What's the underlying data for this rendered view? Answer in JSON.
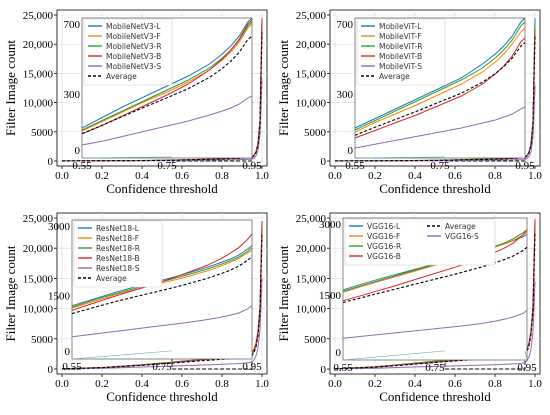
{
  "chart_data": [
    {
      "type": "line",
      "panel": "top-left",
      "xlabel": "Confidence threshold",
      "ylabel": "Filter Image count",
      "xlim": [
        0.0,
        1.0
      ],
      "ylim": [
        0,
        25000
      ],
      "xticks": [
        0.0,
        0.2,
        0.4,
        0.6,
        0.8,
        1.0
      ],
      "xtick_labels": [
        "0.0",
        "0.2",
        "0.4",
        "0.6",
        "0.8",
        "1.0"
      ],
      "yticks": [
        0,
        5000,
        10000,
        15000,
        20000,
        25000
      ],
      "ytick_labels": [
        "0",
        "5000",
        "10,000",
        "15,000",
        "20,000",
        "25,000"
      ],
      "grid": true,
      "x": [
        0.0,
        0.2,
        0.4,
        0.55,
        0.6,
        0.65,
        0.7,
        0.75,
        0.8,
        0.85,
        0.88,
        0.9,
        0.92,
        0.94,
        0.95,
        0.96,
        0.97,
        0.98,
        0.99,
        1.0
      ],
      "series": [
        {
          "name": "MobileNetV3-L",
          "color": "#1f77b4",
          "values": [
            20,
            40,
            90,
            150,
            205,
            260,
            310,
            360,
            410,
            470,
            520,
            560,
            610,
            680,
            700,
            1000,
            1600,
            3000,
            7000,
            24500
          ]
        },
        {
          "name": "MobileNetV3-F",
          "color": "#ff7f0e",
          "values": [
            15,
            35,
            80,
            135,
            185,
            235,
            285,
            330,
            380,
            440,
            490,
            530,
            580,
            650,
            670,
            950,
            1500,
            2800,
            6500,
            23000
          ]
        },
        {
          "name": "MobileNetV3-R",
          "color": "#2ca02c",
          "values": [
            15,
            35,
            80,
            140,
            190,
            240,
            290,
            340,
            390,
            450,
            500,
            540,
            590,
            660,
            680,
            960,
            1550,
            2900,
            6800,
            24000
          ]
        },
        {
          "name": "MobileNetV3-B",
          "color": "#d62728",
          "values": [
            12,
            30,
            70,
            120,
            165,
            215,
            265,
            315,
            370,
            440,
            495,
            540,
            595,
            670,
            690,
            980,
            1600,
            3000,
            7000,
            24300
          ]
        },
        {
          "name": "MobileNetV3-S",
          "color": "#9467bd",
          "values": [
            8,
            18,
            40,
            65,
            85,
            110,
            135,
            160,
            185,
            215,
            235,
            250,
            270,
            300,
            310,
            500,
            900,
            1800,
            4500,
            14000
          ]
        },
        {
          "name": "Average",
          "color": "#000000",
          "dashed": true,
          "values": [
            13,
            32,
            72,
            122,
            166,
            212,
            257,
            301,
            347,
            403,
            448,
            484,
            529,
            592,
            610,
            880,
            1430,
            2700,
            6360,
            22000
          ]
        }
      ],
      "inset": {
        "xlim": [
          0.55,
          0.95
        ],
        "ylim": [
          0,
          700
        ],
        "xtick_labels": [
          "0.55",
          "0.75",
          "0.95"
        ],
        "ytick_labels": [
          "0",
          "300",
          "700"
        ]
      }
    },
    {
      "type": "line",
      "panel": "top-right",
      "xlabel": "Confidence threshold",
      "ylabel": "Filter Image count",
      "xlim": [
        0.0,
        1.0
      ],
      "ylim": [
        0,
        25000
      ],
      "xticks": [
        0.0,
        0.2,
        0.4,
        0.6,
        0.8,
        1.0
      ],
      "xtick_labels": [
        "0.0",
        "0.2",
        "0.4",
        "0.6",
        "0.8",
        "1.0"
      ],
      "yticks": [
        0,
        5000,
        10000,
        15000,
        20000,
        25000
      ],
      "ytick_labels": [
        "0",
        "5000",
        "10,000",
        "15,000",
        "20,000",
        "25,000"
      ],
      "grid": true,
      "x": [
        0.0,
        0.2,
        0.4,
        0.55,
        0.6,
        0.65,
        0.7,
        0.75,
        0.8,
        0.85,
        0.88,
        0.9,
        0.92,
        0.94,
        0.95,
        0.96,
        0.97,
        0.98,
        0.99,
        1.0
      ],
      "series": [
        {
          "name": "MobileViT-L",
          "color": "#1f77b4",
          "values": [
            20,
            40,
            90,
            150,
            200,
            250,
            300,
            350,
            400,
            470,
            520,
            560,
            610,
            680,
            700,
            1000,
            1600,
            3000,
            7000,
            24500
          ]
        },
        {
          "name": "MobileViT-F",
          "color": "#ff7f0e",
          "values": [
            15,
            35,
            80,
            130,
            180,
            225,
            270,
            320,
            370,
            430,
            480,
            520,
            570,
            630,
            650,
            930,
            1500,
            2800,
            6500,
            23000
          ]
        },
        {
          "name": "MobileViT-R",
          "color": "#2ca02c",
          "values": [
            15,
            35,
            85,
            140,
            190,
            240,
            290,
            340,
            390,
            450,
            500,
            540,
            590,
            660,
            680,
            960,
            1550,
            2900,
            6800,
            24000
          ]
        },
        {
          "name": "MobileViT-B",
          "color": "#d62728",
          "values": [
            10,
            25,
            60,
            100,
            140,
            180,
            220,
            265,
            310,
            370,
            420,
            460,
            510,
            580,
            600,
            880,
            1450,
            2700,
            6300,
            22500
          ]
        },
        {
          "name": "MobileViT-S",
          "color": "#9467bd",
          "values": [
            6,
            14,
            30,
            50,
            70,
            90,
            110,
            130,
            150,
            175,
            190,
            205,
            220,
            245,
            255,
            420,
            800,
            1600,
            4000,
            13000
          ]
        },
        {
          "name": "Average",
          "color": "#000000",
          "dashed": true,
          "values": [
            13,
            30,
            69,
            114,
            156,
            197,
            238,
            281,
            324,
            379,
            422,
            457,
            500,
            559,
            577,
            838,
            1380,
            2600,
            6120,
            21400
          ]
        }
      ],
      "inset": {
        "xlim": [
          0.55,
          0.95
        ],
        "ylim": [
          0,
          700
        ],
        "xtick_labels": [
          "0.55",
          "0.75",
          "0.95"
        ],
        "ytick_labels": [
          "0",
          "300",
          "700"
        ]
      }
    },
    {
      "type": "line",
      "panel": "bottom-left",
      "xlabel": "Confidence threshold",
      "ylabel": "Filter Image count",
      "xlim": [
        0.0,
        1.0
      ],
      "ylim": [
        0,
        25000
      ],
      "xticks": [
        0.0,
        0.2,
        0.4,
        0.6,
        0.8,
        1.0
      ],
      "xtick_labels": [
        "0.0",
        "0.2",
        "0.4",
        "0.6",
        "0.8",
        "1.0"
      ],
      "yticks": [
        0,
        5000,
        10000,
        15000,
        20000,
        25000
      ],
      "ytick_labels": [
        "0",
        "5000",
        "10,000",
        "15,000",
        "20,000",
        "25,000"
      ],
      "grid": true,
      "x": [
        0.0,
        0.2,
        0.4,
        0.55,
        0.6,
        0.65,
        0.7,
        0.75,
        0.8,
        0.85,
        0.88,
        0.9,
        0.92,
        0.94,
        0.95,
        0.96,
        0.97,
        0.98,
        0.99,
        1.0
      ],
      "series": [
        {
          "name": "ResNet18-L",
          "color": "#1f77b4",
          "values": [
            30,
            250,
            700,
            1150,
            1300,
            1450,
            1580,
            1700,
            1830,
            1980,
            2080,
            2150,
            2240,
            2370,
            2450,
            3000,
            4000,
            6000,
            10000,
            24000
          ]
        },
        {
          "name": "ResNet18-F",
          "color": "#ff7f0e",
          "values": [
            28,
            240,
            680,
            1100,
            1250,
            1400,
            1520,
            1640,
            1760,
            1900,
            2000,
            2080,
            2170,
            2290,
            2350,
            2900,
            3900,
            5800,
            9800,
            23500
          ]
        },
        {
          "name": "ResNet18-R",
          "color": "#2ca02c",
          "values": [
            29,
            245,
            690,
            1120,
            1280,
            1420,
            1550,
            1670,
            1800,
            1940,
            2040,
            2110,
            2200,
            2320,
            2400,
            2950,
            3950,
            5900,
            9900,
            23800
          ]
        },
        {
          "name": "ResNet18-B",
          "color": "#d62728",
          "values": [
            25,
            230,
            650,
            1050,
            1210,
            1370,
            1520,
            1670,
            1840,
            2020,
            2160,
            2270,
            2400,
            2580,
            2700,
            3300,
            4300,
            6300,
            10500,
            24500
          ]
        },
        {
          "name": "ResNet18-S",
          "color": "#9467bd",
          "values": [
            15,
            130,
            330,
            480,
            540,
            600,
            660,
            720,
            780,
            850,
            900,
            940,
            990,
            1080,
            1150,
            1500,
            2200,
            3500,
            6500,
            15000
          ]
        },
        {
          "name": "Average",
          "color": "#000000",
          "dashed": true,
          "values": [
            25,
            219,
            610,
            980,
            1116,
            1248,
            1366,
            1480,
            1602,
            1738,
            1836,
            1910,
            2000,
            2128,
            2210,
            2730,
            3670,
            5500,
            9340,
            22160
          ]
        }
      ],
      "inset": {
        "xlim": [
          0.55,
          0.95
        ],
        "ylim": [
          0,
          3000
        ],
        "xtick_labels": [
          "0.55",
          "0.75",
          "0.95"
        ],
        "ytick_labels": [
          "0",
          "1500",
          "3000"
        ]
      }
    },
    {
      "type": "line",
      "panel": "bottom-right",
      "xlabel": "Confidence threshold",
      "ylabel": "Filter Image count",
      "xlim": [
        0.0,
        1.0
      ],
      "ylim": [
        0,
        25000
      ],
      "xticks": [
        0.0,
        0.2,
        0.4,
        0.6,
        0.8,
        1.0
      ],
      "xtick_labels": [
        "0.0",
        "0.2",
        "0.4",
        "0.6",
        "0.8",
        "1.0"
      ],
      "yticks": [
        0,
        5000,
        10000,
        15000,
        20000,
        25000
      ],
      "ytick_labels": [
        "0",
        "5000",
        "10,000",
        "15,000",
        "20,000",
        "25,000"
      ],
      "grid": true,
      "x": [
        0.0,
        0.2,
        0.4,
        0.55,
        0.6,
        0.65,
        0.7,
        0.75,
        0.8,
        0.85,
        0.88,
        0.9,
        0.92,
        0.94,
        0.95,
        0.96,
        0.97,
        0.98,
        0.99,
        1.0
      ],
      "series": [
        {
          "name": "VGG16-L",
          "color": "#1f77b4",
          "values": [
            40,
            350,
            950,
            1450,
            1600,
            1740,
            1880,
            2020,
            2160,
            2300,
            2390,
            2450,
            2520,
            2600,
            2650,
            3200,
            4200,
            6200,
            10200,
            24000
          ]
        },
        {
          "name": "VGG16-F",
          "color": "#ff7f0e",
          "values": [
            40,
            345,
            940,
            1430,
            1580,
            1720,
            1860,
            2000,
            2140,
            2280,
            2380,
            2450,
            2530,
            2630,
            2700,
            3250,
            4250,
            6250,
            10300,
            24200
          ]
        },
        {
          "name": "VGG16-R",
          "color": "#2ca02c",
          "values": [
            42,
            360,
            970,
            1480,
            1630,
            1770,
            1900,
            2030,
            2160,
            2300,
            2400,
            2470,
            2560,
            2680,
            2750,
            3300,
            4300,
            6300,
            10400,
            24500
          ]
        },
        {
          "name": "VGG16-B",
          "color": "#d62728",
          "values": [
            35,
            320,
            860,
            1250,
            1390,
            1530,
            1680,
            1830,
            1980,
            2150,
            2270,
            2360,
            2470,
            2630,
            2750,
            3300,
            4300,
            6300,
            10500,
            24800
          ]
        },
        {
          "name": "VGG16-S",
          "color": "#9467bd",
          "values": [
            15,
            140,
            350,
            460,
            510,
            560,
            610,
            660,
            710,
            770,
            820,
            860,
            910,
            980,
            1050,
            1400,
            2000,
            3300,
            6200,
            14500
          ]
        },
        {
          "name": "Average",
          "color": "#000000",
          "dashed": true,
          "values": [
            34,
            303,
            814,
            1214,
            1342,
            1464,
            1586,
            1708,
            1830,
            1960,
            2052,
            2118,
            2198,
            2304,
            2380,
            2890,
            3810,
            5670,
            9520,
            22400
          ]
        }
      ],
      "inset": {
        "xlim": [
          0.55,
          0.95
        ],
        "ylim": [
          0,
          3000
        ],
        "xtick_labels": [
          "0.55",
          "0.75",
          "0.95"
        ],
        "ytick_labels": [
          "0",
          "1500",
          "3000"
        ]
      }
    }
  ]
}
